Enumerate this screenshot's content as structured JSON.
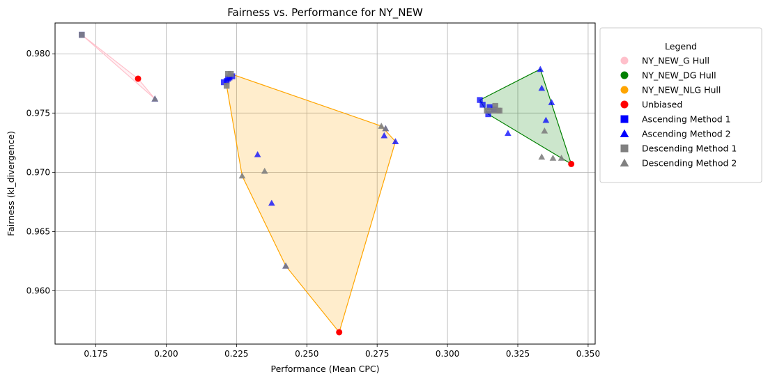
{
  "chart_data": {
    "type": "scatter",
    "title": "Fairness vs. Performance for NY_NEW",
    "xlabel": "Performance (Mean CPC)",
    "ylabel": "Fairness (kl_divergence)",
    "xlim": [
      0.1605,
      0.3525
    ],
    "ylim": [
      0.9555,
      0.9826
    ],
    "xticks": [
      "0.175",
      "0.200",
      "0.225",
      "0.250",
      "0.275",
      "0.300",
      "0.325",
      "0.350"
    ],
    "xtick_values": [
      0.175,
      0.2,
      0.225,
      0.25,
      0.275,
      0.3,
      0.325,
      0.35
    ],
    "yticks": [
      "0.960",
      "0.965",
      "0.970",
      "0.975",
      "0.980"
    ],
    "ytick_values": [
      0.96,
      0.965,
      0.97,
      0.975,
      0.98
    ],
    "grid": true,
    "legend": {
      "title": "Legend",
      "placement": "outside-right",
      "entries": [
        {
          "label": "NY_NEW_G Hull",
          "marker": "circle",
          "color": "#ffc0cb"
        },
        {
          "label": "NY_NEW_DG Hull",
          "marker": "circle",
          "color": "#008000"
        },
        {
          "label": "NY_NEW_NLG Hull",
          "marker": "circle",
          "color": "#ffa500"
        },
        {
          "label": "Unbiased",
          "marker": "circle",
          "color": "#ff0000"
        },
        {
          "label": "Ascending Method 1",
          "marker": "square",
          "color": "#0000ff"
        },
        {
          "label": "Ascending Method 2",
          "marker": "triangle",
          "color": "#0000ff"
        },
        {
          "label": "Descending Method 1",
          "marker": "square",
          "color": "#808080"
        },
        {
          "label": "Descending Method 2",
          "marker": "triangle",
          "color": "#808080"
        }
      ]
    },
    "hulls": [
      {
        "name": "NY_NEW_G Hull",
        "line_color": "#ffc0cb",
        "fill_color": "#ffc0cb",
        "points": [
          [
            0.17,
            0.9816
          ],
          [
            0.19,
            0.9779
          ],
          [
            0.196,
            0.9762
          ]
        ]
      },
      {
        "name": "NY_NEW_DG Hull",
        "line_color": "#008000",
        "fill_color": "#008000",
        "points": [
          [
            0.3115,
            0.9761
          ],
          [
            0.333,
            0.9787
          ],
          [
            0.344,
            0.9707
          ],
          [
            0.3145,
            0.9749
          ]
        ]
      },
      {
        "name": "NY_NEW_NLG Hull",
        "line_color": "#ffa500",
        "fill_color": "#ffa500",
        "points": [
          [
            0.2215,
            0.9773
          ],
          [
            0.223,
            0.9783
          ],
          [
            0.2765,
            0.9739
          ],
          [
            0.2815,
            0.9726
          ],
          [
            0.2615,
            0.9565
          ],
          [
            0.2425,
            0.9621
          ],
          [
            0.227,
            0.9697
          ]
        ]
      }
    ],
    "series": [
      {
        "name": "Unbiased",
        "marker": "circle",
        "color": "#ff0000",
        "points": [
          [
            0.19,
            0.9779
          ],
          [
            0.2615,
            0.9565
          ],
          [
            0.344,
            0.9707
          ]
        ]
      },
      {
        "name": "Ascending Method 1",
        "marker": "square",
        "color": "#0000ff",
        "points": [
          [
            0.17,
            0.9816
          ],
          [
            0.2205,
            0.9776
          ],
          [
            0.2215,
            0.9777
          ],
          [
            0.222,
            0.9779
          ],
          [
            0.2225,
            0.978
          ],
          [
            0.2235,
            0.9781
          ],
          [
            0.3115,
            0.9761
          ],
          [
            0.3125,
            0.9757
          ],
          [
            0.3145,
            0.9749
          ],
          [
            0.315,
            0.9755
          ],
          [
            0.3165,
            0.9753
          ]
        ]
      },
      {
        "name": "Ascending Method 2",
        "marker": "triangle",
        "color": "#0000ff",
        "points": [
          [
            0.196,
            0.9762
          ],
          [
            0.2325,
            0.9715
          ],
          [
            0.2375,
            0.9674
          ],
          [
            0.2425,
            0.9621
          ],
          [
            0.2775,
            0.9731
          ],
          [
            0.278,
            0.9737
          ],
          [
            0.2815,
            0.9726
          ],
          [
            0.3215,
            0.9733
          ],
          [
            0.333,
            0.9787
          ],
          [
            0.3335,
            0.9771
          ],
          [
            0.335,
            0.9744
          ],
          [
            0.337,
            0.9759
          ]
        ]
      },
      {
        "name": "Descending Method 1",
        "marker": "square",
        "color": "#808080",
        "points": [
          [
            0.17,
            0.9816
          ],
          [
            0.2215,
            0.9773
          ],
          [
            0.222,
            0.9783
          ],
          [
            0.223,
            0.9783
          ],
          [
            0.314,
            0.9752
          ],
          [
            0.316,
            0.9752
          ],
          [
            0.317,
            0.9756
          ],
          [
            0.318,
            0.9752
          ],
          [
            0.3185,
            0.9752
          ]
        ]
      },
      {
        "name": "Descending Method 2",
        "marker": "triangle",
        "color": "#808080",
        "points": [
          [
            0.196,
            0.9762
          ],
          [
            0.227,
            0.9697
          ],
          [
            0.235,
            0.9701
          ],
          [
            0.2425,
            0.9621
          ],
          [
            0.2765,
            0.9739
          ],
          [
            0.278,
            0.9737
          ],
          [
            0.3335,
            0.9713
          ],
          [
            0.3345,
            0.9735
          ],
          [
            0.3375,
            0.9712
          ],
          [
            0.3405,
            0.9712
          ]
        ]
      }
    ]
  }
}
